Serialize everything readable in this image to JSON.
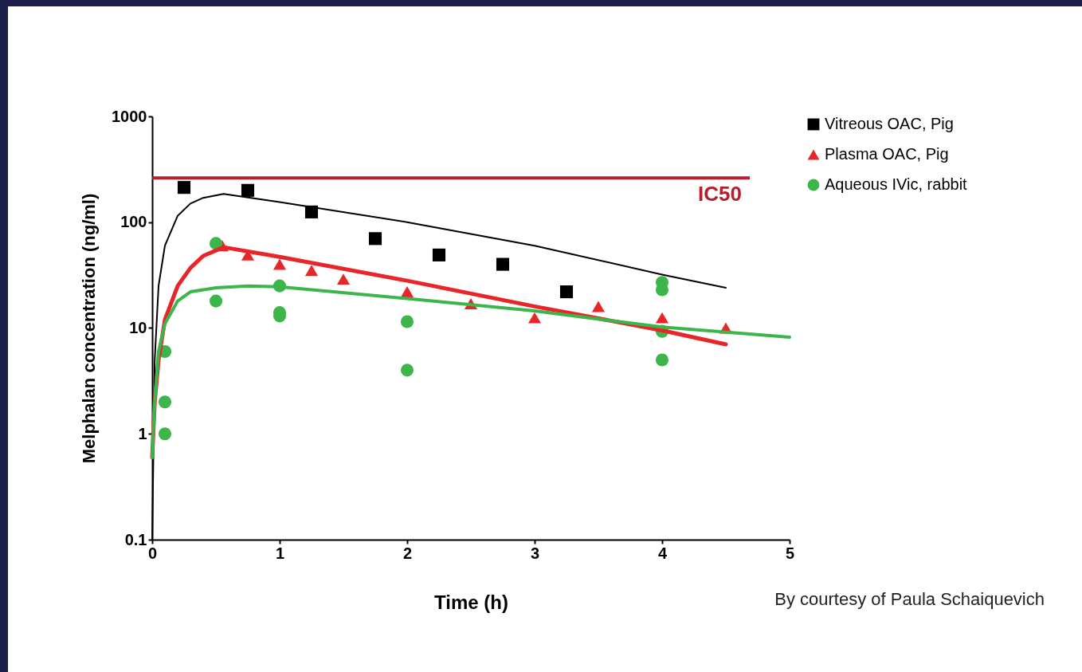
{
  "chart_data": {
    "type": "scatter",
    "xlabel": "Time (h)",
    "ylabel": "Melphalan concentration (ng/ml)",
    "log": "y",
    "xlim": [
      0,
      5
    ],
    "xticks": [
      0,
      1,
      2,
      3,
      4,
      5
    ],
    "ylim": [
      0.1,
      1000
    ],
    "yticks": [
      0.1,
      1,
      10,
      100,
      1000
    ],
    "grid": false,
    "legend": "top right",
    "series": [
      {
        "name": "Vitreous OAC, Pig",
        "color": "#000000",
        "marker": "square",
        "x": [
          0.25,
          0.75,
          1.25,
          1.75,
          2.25,
          2.75,
          3.25
        ],
        "values": [
          213,
          200,
          125,
          70,
          49,
          40,
          22
        ]
      },
      {
        "name": "Plasma OAC, Pig",
        "color": "#e8262a",
        "marker": "triangle",
        "x": [
          0.55,
          0.75,
          1,
          1.25,
          1.5,
          2,
          2.5,
          3,
          3.5,
          4,
          4.5
        ],
        "values": [
          60,
          49,
          40,
          35,
          29,
          22,
          17,
          12.5,
          16,
          12.5,
          10
        ]
      },
      {
        "name": "Aqueous IVic, rabbit",
        "color": "#3cb54a",
        "marker": "circle",
        "x": [
          0.1,
          0.1,
          0.1,
          0.5,
          0.5,
          1,
          1,
          1,
          2,
          2,
          4,
          4,
          4,
          4
        ],
        "values": [
          1,
          2,
          6,
          63,
          18,
          25,
          14,
          13,
          11.5,
          4,
          27,
          23,
          9.3,
          5
        ]
      },
      {
        "type": "line",
        "color": "#000000",
        "x": [
          0,
          0.02,
          0.05,
          0.1,
          0.2,
          0.3,
          0.4,
          0.56,
          1,
          2,
          3,
          4,
          4.5
        ],
        "values": [
          0.1,
          5,
          25,
          60,
          115,
          150,
          170,
          185,
          155,
          100,
          60,
          32,
          24
        ]
      },
      {
        "type": "line",
        "color": "#e8262a",
        "x": [
          0,
          0.02,
          0.05,
          0.1,
          0.2,
          0.3,
          0.4,
          0.56,
          1,
          2,
          3,
          4,
          4.5
        ],
        "values": [
          0.6,
          2,
          5,
          12,
          25,
          37,
          48,
          58,
          47,
          28,
          16,
          9.5,
          7
        ]
      },
      {
        "type": "line",
        "color": "#3cb54a",
        "x": [
          0,
          0.02,
          0.05,
          0.1,
          0.2,
          0.3,
          0.5,
          0.75,
          1,
          2,
          3,
          4,
          5
        ],
        "values": [
          0.6,
          2,
          6,
          11,
          18,
          22,
          24,
          25,
          24.5,
          19,
          14.5,
          10.2,
          8.2
        ]
      }
    ],
    "ref_lines": [
      {
        "axis": "y",
        "value": 262,
        "label": "IC50",
        "color": "#b5202e"
      }
    ],
    "annotations": [
      "By courtesy of Paula Schaiquevich"
    ]
  }
}
